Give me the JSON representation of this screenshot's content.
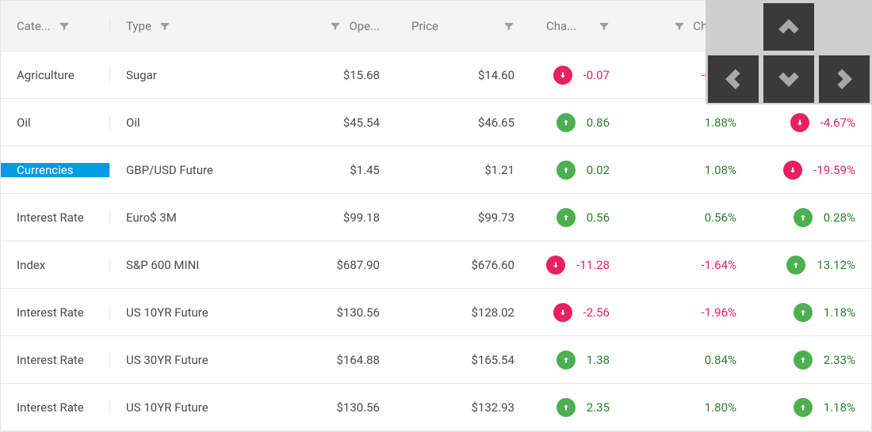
{
  "colors": {
    "header_bg": "#f4f4f4",
    "row_border": "#e6e6e6",
    "selected_bg": "#039be5",
    "up_badge": "#4caf50",
    "down_badge": "#e91e63",
    "up_text": "#2e7d32",
    "down_text": "#e91e63",
    "nav_bg": "#cfcfcf",
    "nav_btn": "#3a3a3a",
    "nav_arrow": "#a8a8a8"
  },
  "columns": [
    {
      "key": "category",
      "label": "Cate...",
      "filter": true,
      "align": "left"
    },
    {
      "key": "type",
      "label": "Type",
      "filter": true,
      "align": "left",
      "filter_align": "right"
    },
    {
      "key": "open",
      "label": "Ope...",
      "filter": true,
      "align": "right",
      "filter_align": "left"
    },
    {
      "key": "price",
      "label": "Price",
      "filter": true,
      "align": "right",
      "filter_align": "right"
    },
    {
      "key": "change",
      "label": "Cha...",
      "filter": true,
      "align": "right",
      "filter_align": "right"
    },
    {
      "key": "changep",
      "label": "Chang...",
      "filter": true,
      "align": "right",
      "filter_align": "left"
    },
    {
      "key": "changey",
      "label": "",
      "filter": false,
      "align": "right"
    }
  ],
  "rows": [
    {
      "category": "Agriculture",
      "type": "Sugar",
      "open": "$15.68",
      "price": "$14.60",
      "change_dir": "down",
      "change": "-0.07",
      "changep_dir": "down",
      "changep": "-0.52%",
      "changey_dir": null,
      "changey": ""
    },
    {
      "category": "Oil",
      "type": "Oil",
      "open": "$45.54",
      "price": "$46.65",
      "change_dir": "up",
      "change": "0.86",
      "changep_dir": "up",
      "changep": "1.88%",
      "changey_dir": "down",
      "changey": "-4.67%"
    },
    {
      "category": "Currencies",
      "type": "GBP/USD Future",
      "open": "$1.45",
      "price": "$1.21",
      "change_dir": "up",
      "change": "0.02",
      "changep_dir": "up",
      "changep": "1.08%",
      "changey_dir": "down",
      "changey": "-19.59%",
      "selected": true
    },
    {
      "category": "Interest Rate",
      "type": "Euro$ 3M",
      "open": "$99.18",
      "price": "$99.73",
      "change_dir": "up",
      "change": "0.56",
      "changep_dir": "up",
      "changep": "0.56%",
      "changey_dir": "up",
      "changey": "0.28%"
    },
    {
      "category": "Index",
      "type": "S&P 600 MINI",
      "open": "$687.90",
      "price": "$676.60",
      "change_dir": "down",
      "change": "-11.28",
      "changep_dir": "down",
      "changep": "-1.64%",
      "changey_dir": "up",
      "changey": "13.12%"
    },
    {
      "category": "Interest Rate",
      "type": "US 10YR Future",
      "open": "$130.56",
      "price": "$128.02",
      "change_dir": "down",
      "change": "-2.56",
      "changep_dir": "down",
      "changep": "-1.96%",
      "changey_dir": "up",
      "changey": "1.18%"
    },
    {
      "category": "Interest Rate",
      "type": "US 30YR Future",
      "open": "$164.88",
      "price": "$165.54",
      "change_dir": "up",
      "change": "1.38",
      "changep_dir": "up",
      "changep": "0.84%",
      "changey_dir": "up",
      "changey": "2.33%"
    },
    {
      "category": "Interest Rate",
      "type": "US 10YR Future",
      "open": "$130.56",
      "price": "$132.93",
      "change_dir": "up",
      "change": "2.35",
      "changep_dir": "up",
      "changep": "1.80%",
      "changey_dir": "up",
      "changey": "1.18%"
    }
  ]
}
